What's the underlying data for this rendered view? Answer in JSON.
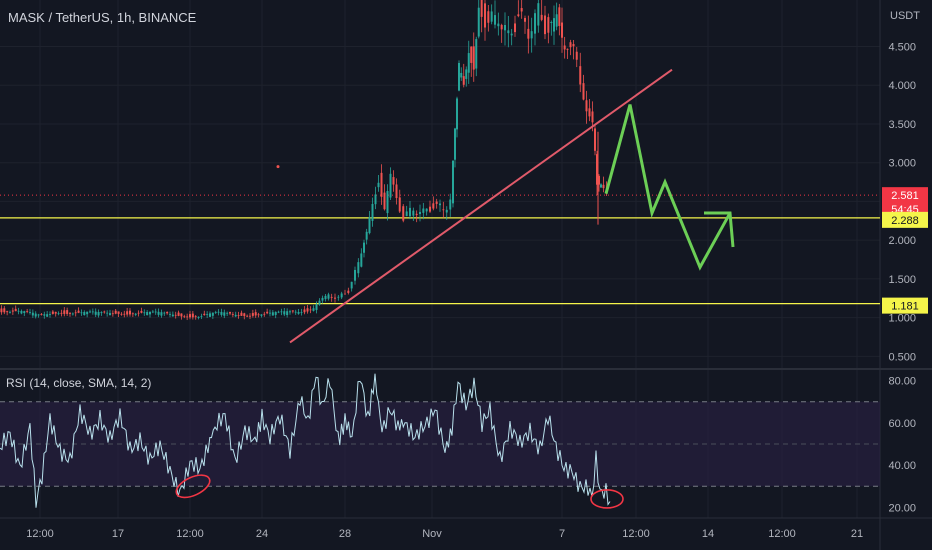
{
  "chart_data": [
    {
      "type": "candlestick",
      "title": "MASK / TetherUS, 1h, BINANCE",
      "currency": "USDT",
      "x_ticks": [
        "12:00",
        "17",
        "12:00",
        "24",
        "28",
        "Nov",
        "7",
        "12:00",
        "14",
        "12:00",
        "21"
      ],
      "y_ticks": [
        4.5,
        4.0,
        3.5,
        3.0,
        2.5,
        2.0,
        1.5,
        1.0,
        0.5
      ],
      "y_tick_labels": [
        "4.500",
        "4.000",
        "3.500",
        "3.000",
        "2.500",
        "2.000",
        "1.500",
        "1.000",
        "0.500"
      ],
      "ylim": [
        0.35,
        5.1
      ],
      "current_price": "2.581",
      "countdown": "54:45",
      "horizontal_levels": [
        {
          "value": 2.288,
          "label": "2.288",
          "color": "#f5f54a"
        },
        {
          "value": 1.181,
          "label": "1.181",
          "color": "#f5f54a"
        }
      ],
      "price_path": [
        {
          "x": 0,
          "y": 1.1
        },
        {
          "x": 20,
          "y": 1.08
        },
        {
          "x": 40,
          "y": 1.02
        },
        {
          "x": 60,
          "y": 1.08
        },
        {
          "x": 80,
          "y": 1.06
        },
        {
          "x": 100,
          "y": 1.05
        },
        {
          "x": 120,
          "y": 1.07
        },
        {
          "x": 140,
          "y": 1.06
        },
        {
          "x": 160,
          "y": 1.05
        },
        {
          "x": 180,
          "y": 1.04
        },
        {
          "x": 200,
          "y": 1.02
        },
        {
          "x": 220,
          "y": 1.05
        },
        {
          "x": 240,
          "y": 1.04
        },
        {
          "x": 260,
          "y": 1.05
        },
        {
          "x": 280,
          "y": 1.05
        },
        {
          "x": 300,
          "y": 1.08
        },
        {
          "x": 315,
          "y": 1.12
        },
        {
          "x": 330,
          "y": 1.3
        },
        {
          "x": 340,
          "y": 1.25
        },
        {
          "x": 350,
          "y": 1.35
        },
        {
          "x": 360,
          "y": 1.7
        },
        {
          "x": 368,
          "y": 2.1
        },
        {
          "x": 374,
          "y": 2.5
        },
        {
          "x": 380,
          "y": 2.8
        },
        {
          "x": 386,
          "y": 2.4
        },
        {
          "x": 392,
          "y": 2.8
        },
        {
          "x": 398,
          "y": 2.5
        },
        {
          "x": 405,
          "y": 2.3
        },
        {
          "x": 415,
          "y": 2.4
        },
        {
          "x": 425,
          "y": 2.35
        },
        {
          "x": 435,
          "y": 2.45
        },
        {
          "x": 445,
          "y": 2.4
        },
        {
          "x": 452,
          "y": 2.5
        },
        {
          "x": 456,
          "y": 3.5
        },
        {
          "x": 460,
          "y": 4.2
        },
        {
          "x": 465,
          "y": 4.0
        },
        {
          "x": 470,
          "y": 4.5
        },
        {
          "x": 475,
          "y": 4.3
        },
        {
          "x": 480,
          "y": 5.0
        },
        {
          "x": 490,
          "y": 4.8
        },
        {
          "x": 500,
          "y": 4.9
        },
        {
          "x": 510,
          "y": 4.6
        },
        {
          "x": 520,
          "y": 4.9
        },
        {
          "x": 530,
          "y": 4.7
        },
        {
          "x": 540,
          "y": 4.95
        },
        {
          "x": 550,
          "y": 4.7
        },
        {
          "x": 558,
          "y": 4.9
        },
        {
          "x": 566,
          "y": 4.5
        },
        {
          "x": 575,
          "y": 4.4
        },
        {
          "x": 582,
          "y": 4.1
        },
        {
          "x": 588,
          "y": 3.7
        },
        {
          "x": 594,
          "y": 3.45
        },
        {
          "x": 598,
          "y": 2.8
        },
        {
          "x": 602,
          "y": 2.65
        },
        {
          "x": 608,
          "y": 2.58
        }
      ],
      "trendline": {
        "x1": 290,
        "y1": 0.68,
        "x2": 672,
        "y2": 4.2,
        "color": "#e05a6a"
      },
      "projection": [
        {
          "x": 606,
          "y": 2.6
        },
        {
          "x": 630,
          "y": 3.75
        },
        {
          "x": 652,
          "y": 2.35
        },
        {
          "x": 665,
          "y": 2.75
        },
        {
          "x": 700,
          "y": 1.65
        },
        {
          "x": 730,
          "y": 2.35
        }
      ],
      "projection_color": "#6ccf56"
    },
    {
      "type": "line",
      "title": "RSI (14, close, SMA, 14, 2)",
      "y_ticks": [
        80,
        60,
        40,
        20
      ],
      "y_tick_labels": [
        "80.00",
        "60.00",
        "40.00",
        "20.00"
      ],
      "ylim": [
        15,
        85
      ],
      "band": [
        30,
        70
      ],
      "midline": 50,
      "rsi_path": [
        {
          "x": 0,
          "y": 45
        },
        {
          "x": 10,
          "y": 55
        },
        {
          "x": 20,
          "y": 42
        },
        {
          "x": 30,
          "y": 58
        },
        {
          "x": 36,
          "y": 20
        },
        {
          "x": 42,
          "y": 32
        },
        {
          "x": 50,
          "y": 62
        },
        {
          "x": 60,
          "y": 50
        },
        {
          "x": 70,
          "y": 42
        },
        {
          "x": 80,
          "y": 62
        },
        {
          "x": 90,
          "y": 55
        },
        {
          "x": 100,
          "y": 65
        },
        {
          "x": 110,
          "y": 52
        },
        {
          "x": 120,
          "y": 60
        },
        {
          "x": 130,
          "y": 48
        },
        {
          "x": 140,
          "y": 55
        },
        {
          "x": 150,
          "y": 42
        },
        {
          "x": 160,
          "y": 46
        },
        {
          "x": 170,
          "y": 38
        },
        {
          "x": 180,
          "y": 30
        },
        {
          "x": 190,
          "y": 40
        },
        {
          "x": 200,
          "y": 35
        },
        {
          "x": 208,
          "y": 48
        },
        {
          "x": 215,
          "y": 55
        },
        {
          "x": 225,
          "y": 62
        },
        {
          "x": 235,
          "y": 45
        },
        {
          "x": 245,
          "y": 58
        },
        {
          "x": 255,
          "y": 48
        },
        {
          "x": 262,
          "y": 65
        },
        {
          "x": 270,
          "y": 52
        },
        {
          "x": 280,
          "y": 60
        },
        {
          "x": 290,
          "y": 48
        },
        {
          "x": 300,
          "y": 75
        },
        {
          "x": 308,
          "y": 60
        },
        {
          "x": 316,
          "y": 80
        },
        {
          "x": 322,
          "y": 65
        },
        {
          "x": 330,
          "y": 82
        },
        {
          "x": 338,
          "y": 55
        },
        {
          "x": 345,
          "y": 60
        },
        {
          "x": 352,
          "y": 50
        },
        {
          "x": 360,
          "y": 80
        },
        {
          "x": 368,
          "y": 62
        },
        {
          "x": 375,
          "y": 78
        },
        {
          "x": 382,
          "y": 58
        },
        {
          "x": 390,
          "y": 65
        },
        {
          "x": 398,
          "y": 55
        },
        {
          "x": 405,
          "y": 60
        },
        {
          "x": 415,
          "y": 50
        },
        {
          "x": 425,
          "y": 58
        },
        {
          "x": 435,
          "y": 70
        },
        {
          "x": 445,
          "y": 48
        },
        {
          "x": 452,
          "y": 60
        },
        {
          "x": 458,
          "y": 82
        },
        {
          "x": 466,
          "y": 68
        },
        {
          "x": 474,
          "y": 75
        },
        {
          "x": 482,
          "y": 58
        },
        {
          "x": 490,
          "y": 68
        },
        {
          "x": 500,
          "y": 45
        },
        {
          "x": 510,
          "y": 55
        },
        {
          "x": 520,
          "y": 48
        },
        {
          "x": 530,
          "y": 58
        },
        {
          "x": 540,
          "y": 50
        },
        {
          "x": 548,
          "y": 62
        },
        {
          "x": 556,
          "y": 45
        },
        {
          "x": 564,
          "y": 38
        },
        {
          "x": 572,
          "y": 40
        },
        {
          "x": 580,
          "y": 32
        },
        {
          "x": 588,
          "y": 28
        },
        {
          "x": 592,
          "y": 22
        },
        {
          "x": 596,
          "y": 40
        },
        {
          "x": 600,
          "y": 25
        },
        {
          "x": 606,
          "y": 28
        },
        {
          "x": 610,
          "y": 24
        }
      ]
    }
  ]
}
